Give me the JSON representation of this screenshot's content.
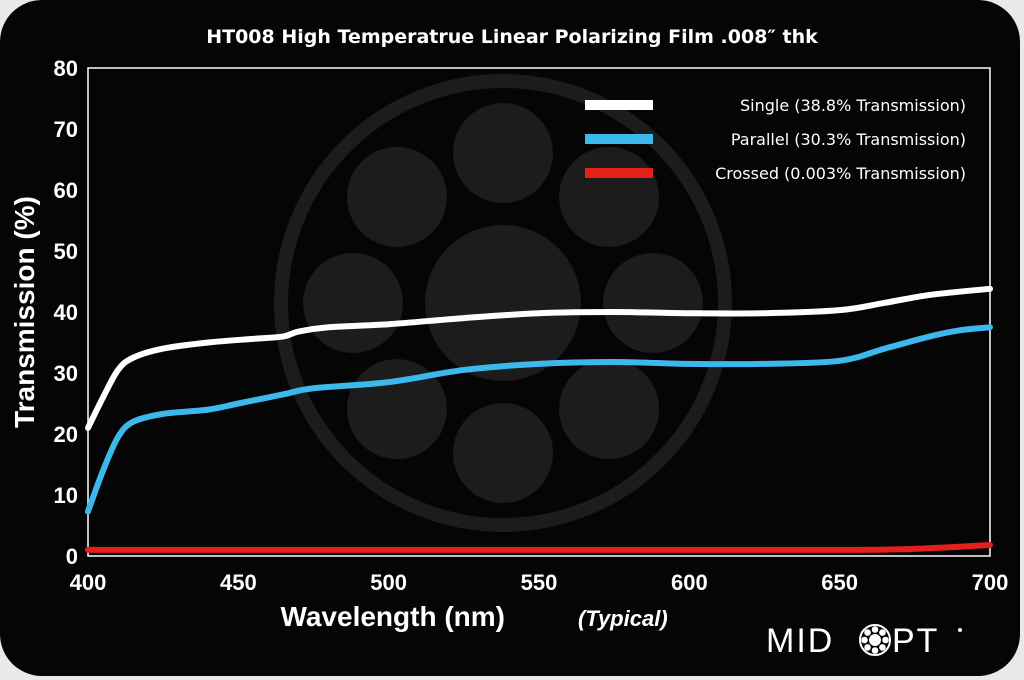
{
  "chart_data": {
    "type": "line",
    "title": "HT008 High Temperatrue Linear Polarizing Film .008″ thk",
    "xlabel": "Wavelength (nm)",
    "xlabel_note": "(Typical)",
    "ylabel": "Transmission (%)",
    "xlim": [
      400,
      700
    ],
    "ylim": [
      0,
      80
    ],
    "xticks": [
      400,
      450,
      500,
      550,
      600,
      650,
      700
    ],
    "yticks": [
      0,
      10,
      20,
      30,
      40,
      50,
      60,
      70,
      80
    ],
    "grid": false,
    "legend_position": "top-right",
    "series": [
      {
        "name": "Single (38.8% Transmission)",
        "color": "#ffffff",
        "x": [
          400,
          405,
          410,
          415,
          425,
          440,
          455,
          465,
          470,
          480,
          500,
          525,
          550,
          575,
          600,
          625,
          650,
          665,
          680,
          700
        ],
        "y": [
          21,
          26,
          30.5,
          32.5,
          34,
          35,
          35.6,
          36,
          36.8,
          37.5,
          38,
          39,
          39.8,
          40,
          39.8,
          39.8,
          40.3,
          41.5,
          42.8,
          43.8
        ]
      },
      {
        "name": "Parallel (30.3% Transmission)",
        "color": "#3db8ea",
        "x": [
          400,
          405,
          410,
          415,
          425,
          440,
          450,
          465,
          475,
          500,
          525,
          550,
          575,
          600,
          625,
          650,
          665,
          680,
          690,
          700
        ],
        "y": [
          7.3,
          14,
          19.5,
          22,
          23.3,
          24,
          25,
          26.5,
          27.5,
          28.5,
          30.5,
          31.5,
          31.8,
          31.5,
          31.5,
          32,
          34,
          36,
          37,
          37.5
        ]
      },
      {
        "name": "Crossed (0.003% Transmission)",
        "color": "#e3201b",
        "x": [
          400,
          450,
          500,
          550,
          600,
          650,
          670,
          685,
          700
        ],
        "y": [
          1,
          1,
          1,
          1,
          1,
          1,
          1.1,
          1.4,
          1.8
        ]
      }
    ]
  },
  "brand": {
    "logo_text": "MIDOPT"
  }
}
